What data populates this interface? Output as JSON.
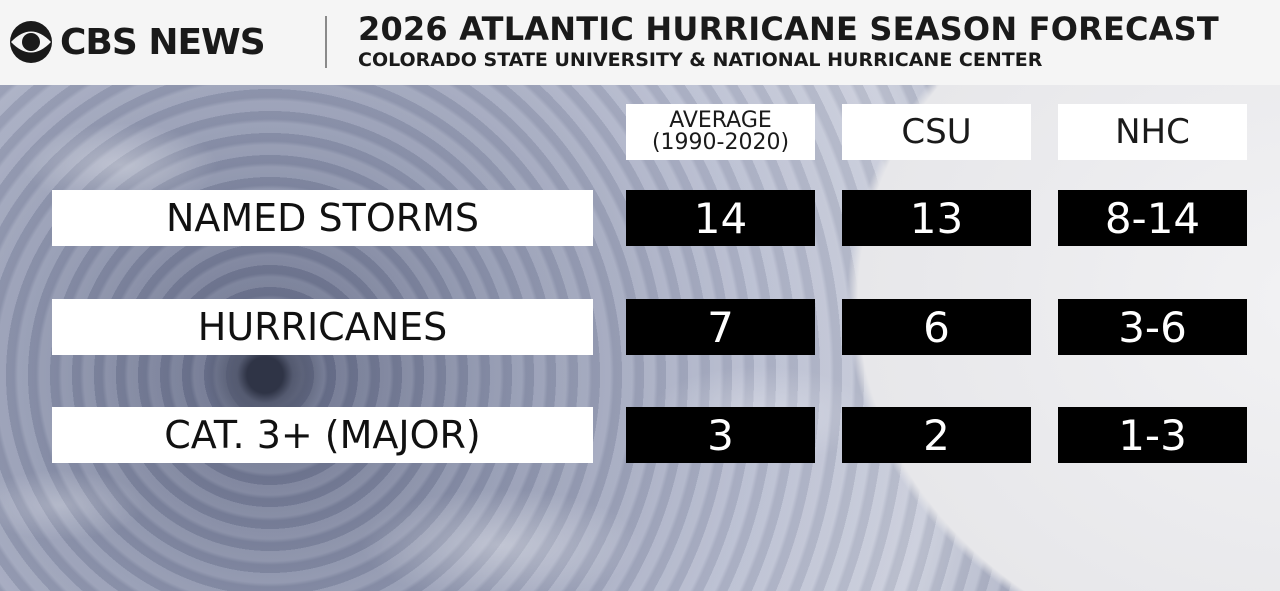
{
  "header": {
    "logo_text": "CBS NEWS",
    "title": "2026 ATLANTIC HURRICANE SEASON FORECAST",
    "subtitle": "COLORADO STATE UNIVERSITY & NATIONAL HURRICANE CENTER"
  },
  "table": {
    "columns": [
      {
        "line1": "AVERAGE",
        "line2": "(1990-2020)"
      },
      {
        "label": "CSU"
      },
      {
        "label": "NHC"
      }
    ],
    "rows": [
      {
        "label": "NAMED STORMS",
        "values": [
          "14",
          "13",
          "8-14"
        ]
      },
      {
        "label": "HURRICANES",
        "values": [
          "7",
          "6",
          "3-6"
        ]
      },
      {
        "label": "CAT. 3+ (MAJOR)",
        "values": [
          "3",
          "2",
          "1-3"
        ]
      }
    ]
  },
  "colors": {
    "header_bg": "#f5f5f5",
    "label_bg": "#ffffff",
    "value_bg": "#000000",
    "value_text": "#ffffff"
  },
  "icons": {
    "logo": "cbs-eye-icon"
  }
}
